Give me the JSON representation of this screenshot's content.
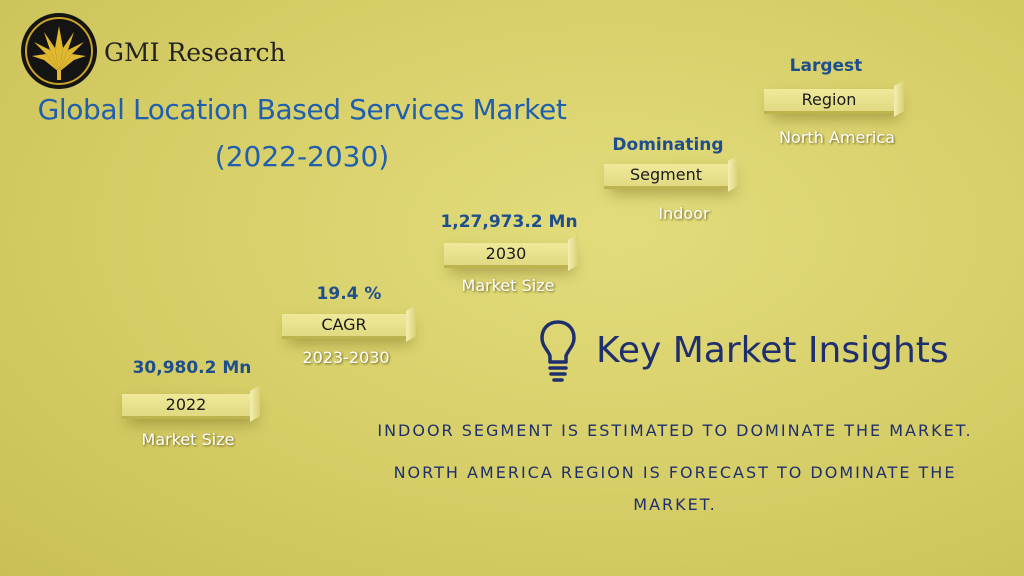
{
  "brand": {
    "name": "GMI Research",
    "logo_icon": "palm-fan-logo-icon"
  },
  "title": {
    "line1": "Global Location Based Services Market",
    "line2": "(2022-2030)"
  },
  "steps": [
    {
      "value": "30,980.2 Mn",
      "label": "2022",
      "sub": "Market Size"
    },
    {
      "value": "19.4 %",
      "label": "CAGR",
      "sub": "2023-2030"
    },
    {
      "value": "1,27,973.2 Mn",
      "label": "2030",
      "sub": "Market Size"
    },
    {
      "value": "Dominating",
      "label": "Segment",
      "sub": "Indoor"
    },
    {
      "value": "Largest",
      "label": "Region",
      "sub": "North America"
    }
  ],
  "insights": {
    "icon": "lightbulb-icon",
    "heading": "Key Market Insights",
    "line1": "INDOOR SEGMENT IS ESTIMATED TO DOMINATE THE MARKET.",
    "line2a": "NORTH AMERICA REGION IS FORECAST TO DOMINATE THE",
    "line2b": "MARKET."
  },
  "colors": {
    "background": "#d8d06a",
    "title": "#1f5fae",
    "value": "#1f4e8c",
    "insight": "#1f2f6e"
  }
}
